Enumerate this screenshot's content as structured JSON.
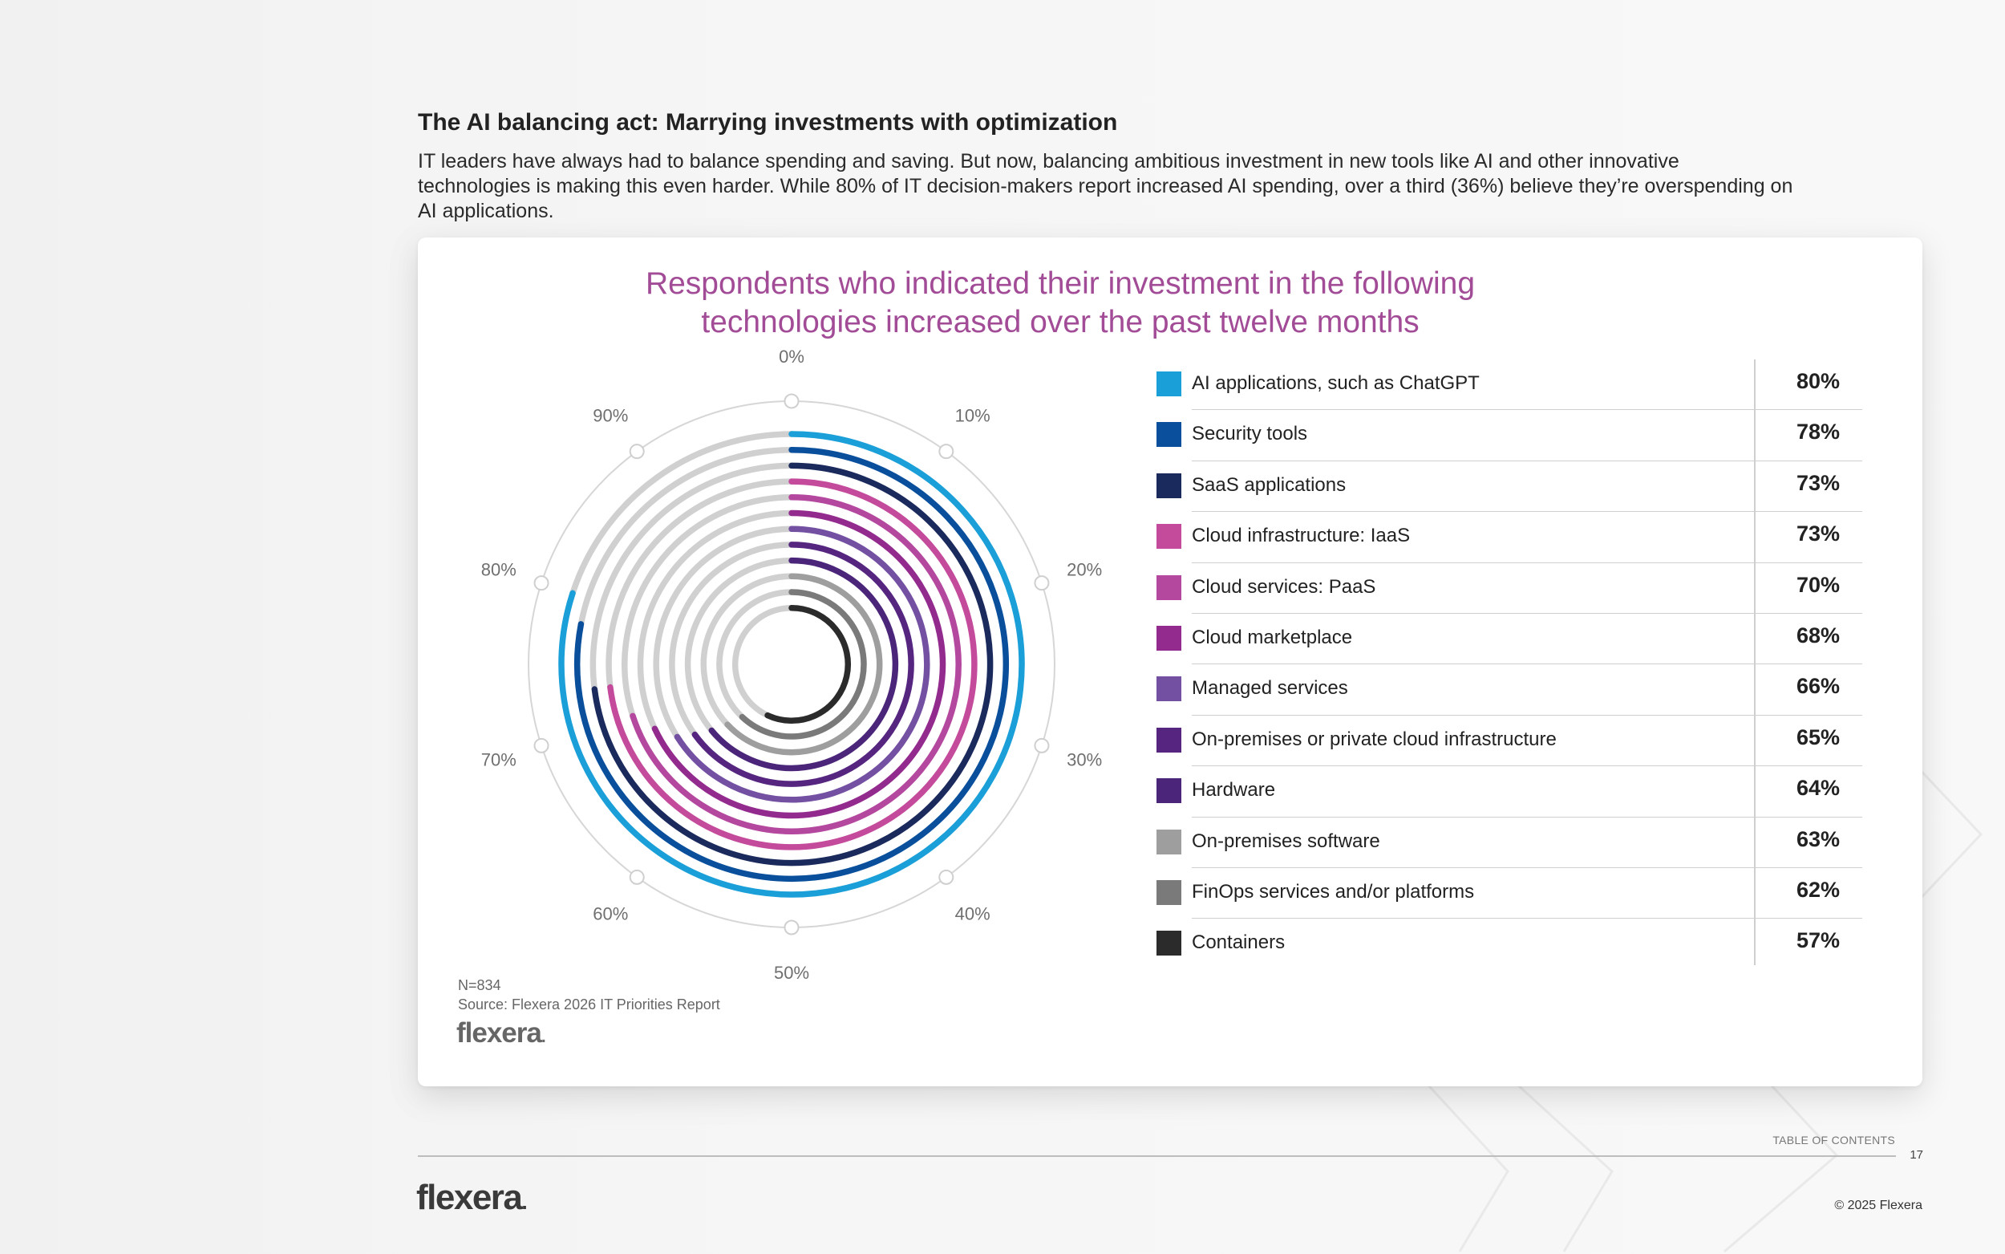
{
  "page": {
    "heading": "The AI balancing act: Marrying investments with optimization",
    "intro": "IT leaders have always had to balance spending and saving. But now, balancing ambitious investment in new tools like AI and other innovative technologies is making this even harder. While 80% of IT decision-makers report increased AI spending, over a third (36%) believe they’re overspending on AI applications.",
    "footer": {
      "toc_label": "TABLE OF CONTENTS",
      "page_number": "17",
      "logo_text": "flexera",
      "copyright": "© 2025 Flexera"
    }
  },
  "chart_data": {
    "type": "radial-bar",
    "title_lines": [
      "Respondents who indicated their investment in the following",
      "technologies increased over the past twelve months"
    ],
    "axis_ticks": [
      "0%",
      "10%",
      "20%",
      "30%",
      "40%",
      "50%",
      "60%",
      "70%",
      "80%",
      "90%"
    ],
    "axis_range": [
      0,
      100
    ],
    "track_color": "#d0d0d0",
    "series": [
      {
        "name": "AI applications, such as ChatGPT",
        "value": 80,
        "label": "80%",
        "color": "#1a9fd8"
      },
      {
        "name": "Security tools",
        "value": 78,
        "label": "78%",
        "color": "#0a4f9c"
      },
      {
        "name": "SaaS applications",
        "value": 73,
        "label": "73%",
        "color": "#1b2a5c"
      },
      {
        "name": "Cloud infrastructure: IaaS",
        "value": 73,
        "label": "73%",
        "color": "#c44a9c"
      },
      {
        "name": "Cloud services: PaaS",
        "value": 70,
        "label": "70%",
        "color": "#b4479e"
      },
      {
        "name": "Cloud marketplace",
        "value": 68,
        "label": "68%",
        "color": "#932b8e"
      },
      {
        "name": "Managed services",
        "value": 66,
        "label": "66%",
        "color": "#7450a2"
      },
      {
        "name": "On-premises or private cloud infrastructure",
        "value": 65,
        "label": "65%",
        "color": "#552580"
      },
      {
        "name": "Hardware",
        "value": 64,
        "label": "64%",
        "color": "#4b2579"
      },
      {
        "name": "On-premises software",
        "value": 63,
        "label": "63%",
        "color": "#9e9e9e"
      },
      {
        "name": "FinOps services and/or platforms",
        "value": 62,
        "label": "62%",
        "color": "#7a7a7a"
      },
      {
        "name": "Containers",
        "value": 57,
        "label": "57%",
        "color": "#2b2b2b"
      }
    ],
    "note": "N=834",
    "source": "Source: Flexera 2026 IT Priorities Report",
    "logo_text": "flexera"
  }
}
